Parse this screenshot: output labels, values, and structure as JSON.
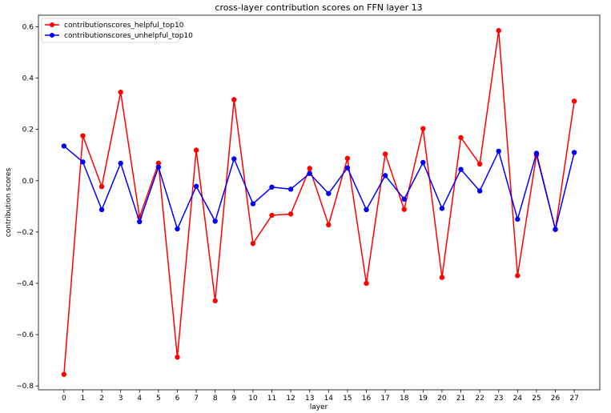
{
  "chart_data": {
    "type": "line",
    "title": "cross-layer contribution scores on FFN layer 13",
    "xlabel": "layer",
    "ylabel": "contribution scores",
    "x": [
      0,
      1,
      2,
      3,
      4,
      5,
      6,
      7,
      8,
      9,
      10,
      11,
      12,
      13,
      14,
      15,
      16,
      17,
      18,
      19,
      20,
      21,
      22,
      23,
      24,
      25,
      26,
      27
    ],
    "xlim": [
      -1.35,
      28.35
    ],
    "ylim": [
      -0.815,
      0.645
    ],
    "yticks": [
      -0.8,
      -0.6,
      -0.4,
      -0.2,
      0.0,
      0.2,
      0.4,
      0.6
    ],
    "ytick_labels": [
      "−0.8",
      "−0.6",
      "−0.4",
      "−0.2",
      "0.0",
      "0.2",
      "0.4",
      "0.6"
    ],
    "grid": false,
    "legend_position": "upper-left",
    "series": [
      {
        "name": "contributionscores_helpful_top10",
        "color": "#ff0000",
        "values": [
          -0.755,
          0.175,
          -0.023,
          0.345,
          -0.142,
          0.068,
          -0.688,
          0.119,
          -0.468,
          0.316,
          -0.245,
          -0.135,
          -0.13,
          0.048,
          -0.172,
          0.087,
          -0.4,
          0.104,
          -0.112,
          0.203,
          -0.377,
          0.168,
          0.065,
          0.585,
          -0.37,
          0.1,
          -0.19,
          0.31
        ]
      },
      {
        "name": "contributionscores_unhelpful_top10",
        "color": "#0000ff",
        "values": [
          0.135,
          0.073,
          -0.113,
          0.068,
          -0.16,
          0.053,
          -0.188,
          -0.022,
          -0.158,
          0.085,
          -0.09,
          -0.025,
          -0.033,
          0.028,
          -0.05,
          0.05,
          -0.113,
          0.02,
          -0.072,
          0.071,
          -0.108,
          0.044,
          -0.04,
          0.115,
          -0.15,
          0.107,
          -0.19,
          0.11
        ]
      }
    ]
  }
}
